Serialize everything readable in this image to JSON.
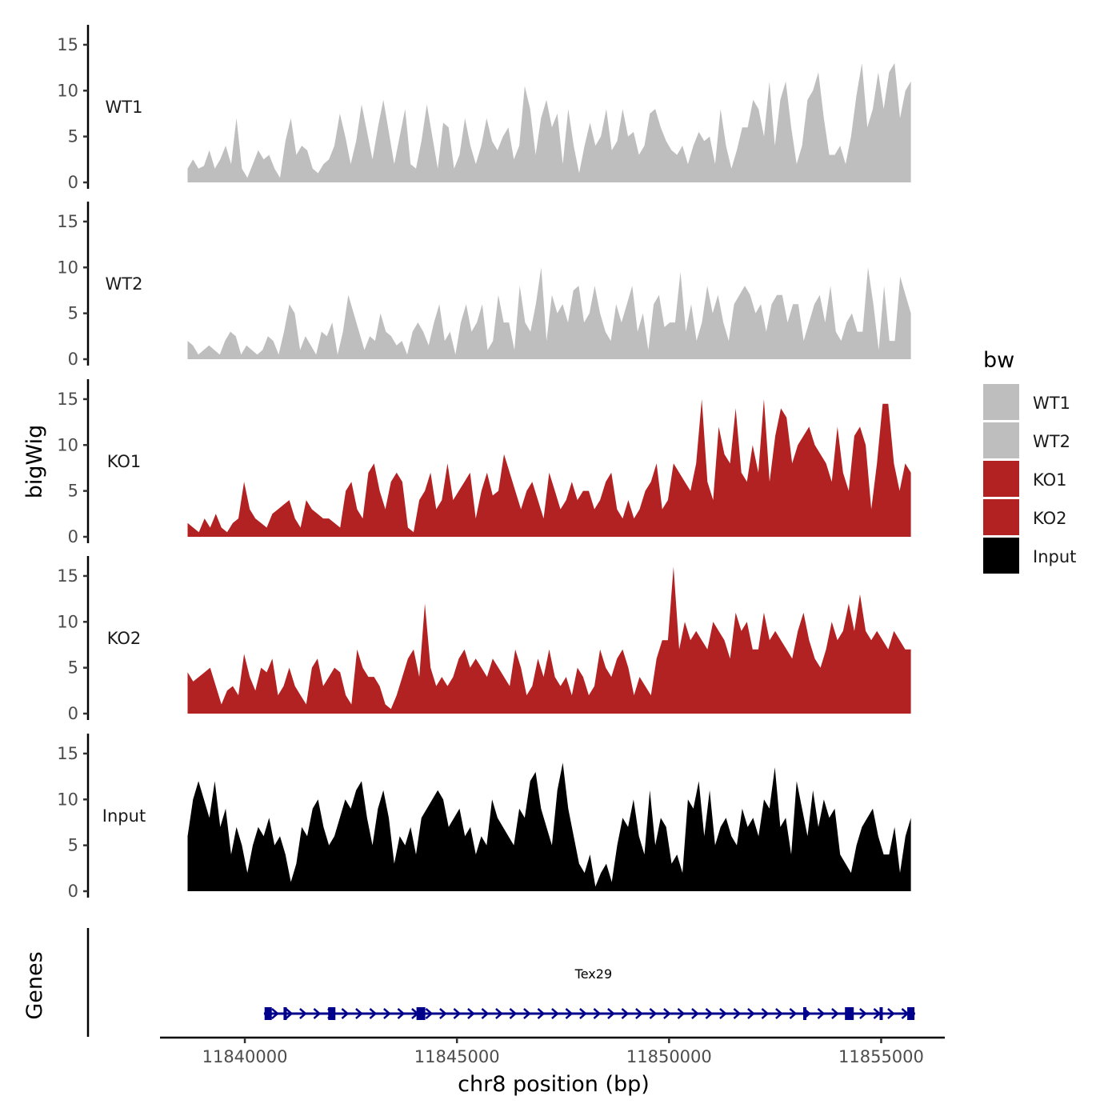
{
  "chart_data": {
    "type": "area",
    "chromosome": "chr8",
    "xlabel": "chr8 position (bp)",
    "ylabel": "bigWig",
    "gene_panel_label": "Genes",
    "xlim": [
      11838000,
      11856500
    ],
    "data_range": [
      11838650,
      11855700
    ],
    "x_ticks": [
      {
        "value": 11840000,
        "label": "11840000"
      },
      {
        "value": 11845000,
        "label": "11845000"
      },
      {
        "value": 11850000,
        "label": "11850000"
      },
      {
        "value": 11855000,
        "label": "11855000"
      }
    ],
    "ylim": [
      0,
      17
    ],
    "y_ticks": [
      {
        "value": 0,
        "label": "0"
      },
      {
        "value": 5,
        "label": "5"
      },
      {
        "value": 10,
        "label": "10"
      },
      {
        "value": 15,
        "label": "15"
      }
    ],
    "series": [
      {
        "name": "WT1",
        "color": "#BEBEBE",
        "values": [
          1.5,
          2.5,
          1.5,
          1.8,
          3.5,
          1.5,
          2.5,
          4,
          2,
          7,
          1.5,
          0.5,
          2,
          3.5,
          2.5,
          3,
          1.5,
          0.5,
          4.5,
          7,
          3,
          4,
          3.5,
          1.5,
          1,
          2,
          2.5,
          4,
          7.5,
          5,
          2,
          4.5,
          8.5,
          5.5,
          2.5,
          6,
          9,
          5.5,
          2,
          5,
          8,
          2,
          1.5,
          4.5,
          8.5,
          5,
          1.5,
          6.5,
          6,
          1.5,
          3,
          7,
          4,
          2,
          4,
          7,
          4.5,
          3.5,
          5,
          6,
          2.5,
          4,
          10.5,
          8,
          3,
          7,
          9,
          6,
          7.5,
          2,
          8,
          4,
          1,
          4,
          6.5,
          4,
          5,
          8,
          3.5,
          4.5,
          8,
          5,
          5.5,
          3,
          4,
          7.5,
          8,
          6,
          4.5,
          3.5,
          3,
          4,
          2,
          4,
          5.5,
          4.5,
          5,
          2,
          8,
          4,
          1.5,
          3.5,
          6,
          6,
          9,
          8,
          5,
          11,
          4,
          9,
          11,
          6,
          2,
          4,
          9,
          10,
          12,
          7,
          3,
          3,
          4,
          2,
          5,
          9.5,
          13,
          6,
          8,
          12,
          8,
          12,
          13,
          7,
          10,
          11
        ],
        "render_step": 0
      },
      {
        "name": "WT2",
        "color": "#BEBEBE",
        "values": [
          2,
          1.5,
          0.5,
          1,
          1.5,
          1,
          0.5,
          2,
          3,
          2.5,
          0.5,
          1.5,
          1,
          0.5,
          1,
          2.5,
          2,
          0.5,
          3,
          6,
          5,
          1,
          2.5,
          1.5,
          0.5,
          3,
          2.5,
          4,
          0.5,
          3,
          7,
          5,
          3,
          1,
          2.5,
          2,
          5,
          3,
          2.5,
          1.5,
          2,
          0.5,
          3,
          4,
          3,
          1.5,
          4,
          6,
          2,
          3,
          0.5,
          4,
          6,
          3,
          4,
          6,
          1,
          2,
          7,
          4,
          4,
          1,
          8,
          4,
          3,
          6,
          10,
          2,
          7,
          5,
          6,
          4,
          7.5,
          8,
          4,
          5,
          8,
          5,
          3,
          2,
          6,
          4,
          6,
          8,
          3,
          5,
          1,
          6,
          7,
          3.5,
          4,
          4,
          9.5,
          3,
          6,
          2,
          4,
          8,
          5,
          7,
          4,
          2,
          6,
          7,
          8,
          7,
          5,
          6,
          3,
          6,
          7,
          7,
          4,
          6,
          6,
          2,
          4,
          6,
          7,
          4,
          8,
          3,
          2,
          4,
          5,
          3,
          3,
          10,
          6,
          1,
          8,
          2,
          2,
          9,
          7,
          5
        ]
      },
      {
        "name": "KO1",
        "color": "#B22222",
        "values": [
          1.5,
          1,
          0.5,
          2,
          1,
          2.5,
          1,
          0.5,
          1.5,
          2,
          6,
          3,
          2,
          1.5,
          1,
          2.5,
          3,
          3.5,
          4,
          2,
          1,
          4,
          3,
          2.5,
          2,
          2,
          1.5,
          1,
          5,
          6,
          3,
          2,
          7,
          8,
          5,
          3,
          6,
          7,
          6,
          1,
          0.5,
          4,
          5,
          7,
          3,
          4,
          8,
          4,
          5,
          6,
          7,
          2,
          5,
          7,
          4.5,
          5,
          9,
          7,
          5,
          3,
          5,
          6,
          4,
          2,
          7,
          5,
          3,
          4,
          6,
          4,
          5,
          5,
          3,
          4,
          6,
          7,
          3,
          2,
          4,
          2,
          3,
          5,
          6,
          8,
          3,
          4,
          8,
          7,
          6,
          5,
          8,
          15,
          6,
          4,
          12,
          9,
          8,
          14,
          7,
          6,
          10,
          7,
          15,
          6,
          11,
          14,
          13,
          8,
          10,
          11,
          12,
          10,
          9,
          8,
          6,
          12,
          7,
          5,
          11,
          12,
          10,
          3,
          8,
          14.5,
          14.5,
          8,
          5,
          8,
          7
        ]
      },
      {
        "name": "KO2",
        "color": "#B22222",
        "values": [
          4.5,
          3.5,
          4,
          4.5,
          5,
          3,
          1,
          2.5,
          3,
          2,
          6.5,
          4,
          2.5,
          5,
          4.5,
          6,
          2,
          3,
          5,
          3,
          2,
          1,
          5,
          6,
          3,
          4,
          5,
          4.5,
          2,
          1,
          7,
          5,
          4,
          4,
          3,
          1,
          0.5,
          2,
          4,
          6,
          7,
          4,
          12,
          5,
          3,
          4,
          3,
          4,
          6,
          7,
          5,
          6,
          5,
          4,
          6,
          5,
          4,
          3,
          7,
          5,
          2,
          3,
          6,
          4,
          7,
          4,
          3,
          4,
          2,
          5,
          4,
          2,
          3,
          7,
          5,
          4,
          6,
          7,
          5,
          2,
          4,
          3,
          2,
          6,
          8,
          8,
          16,
          7,
          10,
          8,
          9,
          8,
          7,
          10,
          9,
          8,
          6,
          11,
          9,
          10,
          7,
          7,
          11,
          8,
          9,
          8,
          7,
          6,
          9,
          11,
          8,
          6,
          5,
          7,
          10,
          8,
          9,
          12,
          9,
          13,
          9,
          8,
          9,
          8,
          7,
          9,
          8,
          7,
          7
        ]
      },
      {
        "name": "Input",
        "color": "#000000",
        "values": [
          6,
          10,
          12,
          10,
          8,
          12,
          7,
          9,
          4,
          7,
          5,
          2,
          5,
          7,
          6,
          8,
          5,
          6,
          4,
          1,
          3,
          7,
          6,
          9,
          10,
          7,
          5,
          6,
          8,
          10,
          9,
          11,
          12,
          8,
          5,
          9,
          11,
          8,
          3,
          6,
          5,
          7,
          4,
          8,
          9,
          10,
          11,
          10,
          7,
          8,
          9,
          6,
          7,
          4,
          6,
          5,
          10,
          8,
          7,
          6,
          5,
          9,
          8,
          12,
          13,
          9,
          7,
          5,
          11,
          14,
          9,
          6,
          3,
          2,
          4,
          0.5,
          2,
          3,
          1,
          5,
          8,
          7,
          10,
          6,
          4,
          11,
          5,
          8,
          7,
          3,
          4,
          2,
          10,
          9,
          12,
          6,
          11,
          5,
          7,
          8,
          6,
          5,
          9,
          7,
          8,
          6,
          10,
          9,
          13.5,
          7,
          8,
          4,
          12,
          9,
          6,
          11,
          7,
          10,
          8,
          9,
          4,
          3,
          2,
          5,
          7,
          8,
          9,
          6,
          4,
          4,
          7,
          2,
          6,
          8
        ]
      }
    ],
    "legend": {
      "title": "bw",
      "entries": [
        {
          "label": "WT1",
          "color": "#BEBEBE"
        },
        {
          "label": "WT2",
          "color": "#BEBEBE"
        },
        {
          "label": "KO1",
          "color": "#B22222"
        },
        {
          "label": "KO2",
          "color": "#B22222"
        },
        {
          "label": "Input",
          "color": "#000000"
        }
      ]
    },
    "gene": {
      "name": "Tex29",
      "color": "#00008B",
      "start": 11840450,
      "end": 11855800,
      "strand": "+",
      "exons": [
        11840550,
        11840950,
        11842050,
        11844150,
        11853200,
        11854250,
        11855000,
        11855700
      ]
    }
  }
}
